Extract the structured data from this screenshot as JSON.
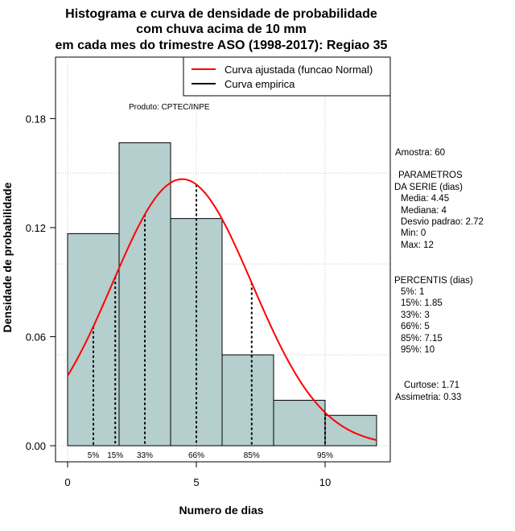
{
  "chart_data": {
    "type": "histogram",
    "title_lines": [
      "Histograma e curva de densidade de probabilidade",
      "com chuva acima de 10 mm",
      "em cada mes do trimestre ASO (1998-2017): Regiao 35"
    ],
    "xlabel": "Numero de dias",
    "ylabel": "Densidade de probabilidade",
    "xlim": [
      0,
      12
    ],
    "ylim": [
      0,
      0.18
    ],
    "x_ticks": [
      0,
      5,
      10
    ],
    "y_ticks": [
      "0.00",
      "0.06",
      "0.12",
      "0.18"
    ],
    "bins": [
      {
        "from": 0,
        "to": 2,
        "density": 0.1167
      },
      {
        "from": 2,
        "to": 4,
        "density": 0.1667
      },
      {
        "from": 4,
        "to": 6,
        "density": 0.125
      },
      {
        "from": 6,
        "to": 8,
        "density": 0.05
      },
      {
        "from": 8,
        "to": 10,
        "density": 0.025
      },
      {
        "from": 10,
        "to": 12,
        "density": 0.0167
      }
    ],
    "normal_fit": {
      "mean": 4.45,
      "sd": 2.72
    },
    "percentile_lines": [
      {
        "label": "5%",
        "x": 1
      },
      {
        "label": "15%",
        "x": 1.85
      },
      {
        "label": "33%",
        "x": 3
      },
      {
        "label": "66%",
        "x": 5
      },
      {
        "label": "85%",
        "x": 7.15
      },
      {
        "label": "95%",
        "x": 10
      }
    ],
    "legend": [
      {
        "label": "Curva ajustada (funcao Normal)",
        "color": "#ff0000"
      },
      {
        "label": "Curva empirica",
        "color": "#000000"
      }
    ],
    "product_label": "Produto: CPTEC/INPE",
    "bar_color": "#b5cece",
    "curve_color": "#ff0000"
  },
  "stats": {
    "amostra": "Amostra: 60",
    "parametros_lines": [
      "PARAMETROS",
      "DA SERIE (dias)"
    ],
    "media": "Media: 4.45",
    "mediana": "Mediana: 4",
    "desvio": "Desvio padrao: 2.72",
    "min": "Min: 0",
    "max": "Max: 12",
    "percentis_title": "PERCENTIS (dias)",
    "percentis": [
      "5%: 1",
      "15%: 1.85",
      "33%: 3",
      "66%: 5",
      "85%: 7.15",
      "95%: 10"
    ],
    "curtose": "Curtose: 1.71",
    "assimetria": "Assimetria: 0.33"
  }
}
